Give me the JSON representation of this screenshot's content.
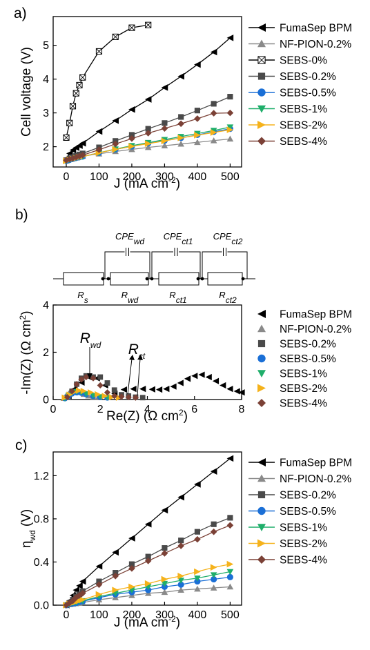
{
  "colors": {
    "FumaSep BPM": "#000000",
    "NF-PION-0.2%": "#8a8a8a",
    "SEBS-0%": "#000000",
    "SEBS-0.2%": "#4a4a4a",
    "SEBS-0.5%": "#1a6fd6",
    "SEBS-1%": "#1fae6a",
    "SEBS-2%": "#f5b21b",
    "SEBS-4%": "#7b4136"
  },
  "markers": {
    "FumaSep BPM": "triangle-left",
    "NF-PION-0.2%": "triangle-up",
    "SEBS-0%": "boxed-x",
    "SEBS-0.2%": "square",
    "SEBS-0.5%": "circle",
    "SEBS-1%": "triangle-down",
    "SEBS-2%": "triangle-right",
    "SEBS-4%": "diamond"
  },
  "circuit": {
    "resistors": [
      "R_s",
      "R_wd",
      "R_ct1",
      "R_ct2"
    ],
    "capacitors": [
      "CPE_wd",
      "CPE_ct1",
      "CPE_ct2"
    ]
  },
  "chart_data": [
    {
      "type": "line",
      "panel": "a)",
      "xlabel": "J (mA cm-2)",
      "ylabel": "Cell voltage (V)",
      "xlim": [
        -40,
        535
      ],
      "ylim": [
        1.4,
        5.85
      ],
      "xticks": [
        0,
        100,
        200,
        300,
        400,
        500
      ],
      "yticks": [
        2,
        3,
        4,
        5
      ],
      "legend": "right",
      "series": [
        {
          "name": "FumaSep BPM",
          "x": [
            0,
            10,
            20,
            30,
            40,
            50,
            100,
            150,
            200,
            250,
            300,
            350,
            400,
            450,
            500
          ],
          "y": [
            1.65,
            1.8,
            1.9,
            1.97,
            2.03,
            2.1,
            2.45,
            2.77,
            3.1,
            3.4,
            3.75,
            4.08,
            4.43,
            4.8,
            5.22
          ]
        },
        {
          "name": "NF-PION-0.2%",
          "x": [
            0,
            10,
            20,
            30,
            40,
            50,
            100,
            150,
            200,
            250,
            300,
            350,
            400,
            450,
            500
          ],
          "y": [
            1.58,
            1.62,
            1.65,
            1.67,
            1.7,
            1.72,
            1.79,
            1.86,
            1.92,
            1.98,
            2.03,
            2.08,
            2.13,
            2.18,
            2.23
          ]
        },
        {
          "name": "SEBS-0%",
          "x": [
            0,
            10,
            20,
            30,
            40,
            50,
            100,
            150,
            200,
            250
          ],
          "y": [
            2.27,
            2.7,
            3.2,
            3.58,
            3.82,
            4.05,
            4.82,
            5.25,
            5.52,
            5.6
          ]
        },
        {
          "name": "SEBS-0.2%",
          "x": [
            0,
            10,
            20,
            30,
            40,
            50,
            100,
            150,
            200,
            250,
            300,
            350,
            400,
            450,
            500
          ],
          "y": [
            1.6,
            1.65,
            1.69,
            1.73,
            1.77,
            1.8,
            1.98,
            2.17,
            2.35,
            2.53,
            2.7,
            2.88,
            3.07,
            3.27,
            3.48
          ]
        },
        {
          "name": "SEBS-0.5%",
          "x": [
            0,
            10,
            20,
            30,
            40,
            50,
            100,
            150,
            200,
            250,
            300,
            350,
            400,
            450,
            500
          ],
          "y": [
            1.58,
            1.61,
            1.64,
            1.67,
            1.69,
            1.71,
            1.82,
            1.92,
            2.01,
            2.1,
            2.18,
            2.26,
            2.35,
            2.44,
            2.53
          ]
        },
        {
          "name": "SEBS-1%",
          "x": [
            0,
            10,
            20,
            30,
            40,
            50,
            100,
            150,
            200,
            250,
            300,
            350,
            400,
            450,
            500
          ],
          "y": [
            1.58,
            1.61,
            1.64,
            1.67,
            1.69,
            1.71,
            1.82,
            1.93,
            2.03,
            2.12,
            2.21,
            2.3,
            2.39,
            2.48,
            2.58
          ]
        },
        {
          "name": "SEBS-2%",
          "x": [
            0,
            10,
            20,
            30,
            40,
            50,
            100,
            150,
            200,
            250,
            300,
            350,
            400,
            450,
            500
          ],
          "y": [
            1.58,
            1.61,
            1.64,
            1.66,
            1.69,
            1.71,
            1.82,
            1.92,
            2.01,
            2.09,
            2.17,
            2.26,
            2.34,
            2.42,
            2.5
          ]
        },
        {
          "name": "SEBS-4%",
          "x": [
            0,
            10,
            20,
            30,
            40,
            50,
            100,
            150,
            200,
            250,
            300,
            350,
            400,
            450,
            500
          ],
          "y": [
            1.6,
            1.63,
            1.66,
            1.69,
            1.72,
            1.75,
            1.91,
            2.08,
            2.24,
            2.4,
            2.54,
            2.68,
            2.83,
            2.99,
            3.0
          ]
        }
      ]
    },
    {
      "type": "scatter",
      "panel": "b)",
      "xlabel": "Re(Z) (Ω cm2)",
      "ylabel": "-Im(Z) (Ω cm2)",
      "xlim": [
        0,
        8
      ],
      "ylim": [
        0,
        4
      ],
      "xticks": [
        0,
        2,
        4,
        6,
        8
      ],
      "yticks": [
        0,
        2,
        4
      ],
      "legend": "right",
      "annotations": [
        "R_wd",
        "R_ct"
      ],
      "series": [
        {
          "name": "FumaSep BPM",
          "x": [
            0.65,
            0.9,
            1.2,
            1.5,
            1.85,
            2.2,
            2.6,
            3.0,
            3.4,
            3.8,
            4.2,
            4.5,
            4.8,
            5.1,
            5.4,
            5.7,
            6.0,
            6.3,
            6.6,
            6.9,
            7.2,
            7.5,
            7.8,
            8.0
          ],
          "y": [
            0.15,
            0.45,
            0.72,
            0.95,
            0.9,
            0.6,
            0.25,
            0.42,
            0.45,
            0.45,
            0.43,
            0.42,
            0.45,
            0.55,
            0.7,
            0.88,
            1.0,
            1.05,
            0.95,
            0.78,
            0.6,
            0.45,
            0.35,
            0.3
          ]
        },
        {
          "name": "NF-PION-0.2%",
          "x": [
            0.45,
            0.55,
            0.65,
            0.8,
            0.95,
            1.1,
            1.3,
            1.5,
            1.7,
            1.9
          ],
          "y": [
            0.05,
            0.15,
            0.25,
            0.32,
            0.33,
            0.3,
            0.22,
            0.15,
            0.1,
            0.08
          ]
        },
        {
          "name": "SEBS-0.2%",
          "x": [
            0.6,
            0.8,
            1.0,
            1.2,
            1.4,
            1.7,
            2.0,
            2.3,
            2.6,
            2.9,
            3.2,
            3.5,
            3.8
          ],
          "y": [
            0.1,
            0.35,
            0.65,
            0.9,
            1.0,
            0.95,
            0.95,
            0.7,
            0.4,
            0.2,
            0.15,
            0.1,
            0.08
          ]
        },
        {
          "name": "SEBS-0.5%",
          "x": [
            0.5,
            0.65,
            0.8,
            1.0,
            1.2,
            1.4,
            1.7,
            2.0,
            2.3
          ],
          "y": [
            0.05,
            0.15,
            0.25,
            0.3,
            0.28,
            0.22,
            0.15,
            0.1,
            0.08
          ]
        },
        {
          "name": "SEBS-1%",
          "x": [
            0.5,
            0.65,
            0.8,
            1.0,
            1.2,
            1.4,
            1.7,
            2.0,
            2.3
          ],
          "y": [
            0.05,
            0.18,
            0.28,
            0.33,
            0.3,
            0.24,
            0.17,
            0.12,
            0.09
          ]
        },
        {
          "name": "SEBS-2%",
          "x": [
            0.5,
            0.7,
            0.9,
            1.1,
            1.3,
            1.6,
            1.9,
            2.2,
            2.5,
            2.8
          ],
          "y": [
            0.08,
            0.2,
            0.32,
            0.38,
            0.36,
            0.3,
            0.22,
            0.15,
            0.1,
            0.08
          ]
        },
        {
          "name": "SEBS-4%",
          "x": [
            0.6,
            0.8,
            1.0,
            1.2,
            1.4,
            1.7,
            2.0,
            2.3,
            2.6,
            2.9,
            3.2,
            3.5
          ],
          "y": [
            0.1,
            0.35,
            0.65,
            0.85,
            0.95,
            0.9,
            0.6,
            0.3,
            0.15,
            0.12,
            0.1,
            0.08
          ]
        }
      ]
    },
    {
      "type": "line",
      "panel": "c)",
      "xlabel": "J (mA cm-2)",
      "ylabel": "ηwd (V)",
      "xlim": [
        -40,
        535
      ],
      "ylim": [
        0,
        1.42
      ],
      "xticks": [
        0,
        100,
        200,
        300,
        400,
        500
      ],
      "yticks": [
        0.0,
        0.4,
        0.8,
        1.2
      ],
      "legend": "right",
      "series": [
        {
          "name": "FumaSep BPM",
          "x": [
            0,
            10,
            20,
            30,
            40,
            50,
            100,
            150,
            200,
            250,
            300,
            350,
            400,
            450,
            500
          ],
          "y": [
            0,
            0.04,
            0.09,
            0.14,
            0.18,
            0.22,
            0.36,
            0.49,
            0.62,
            0.75,
            0.88,
            1.0,
            1.12,
            1.24,
            1.36
          ]
        },
        {
          "name": "NF-PION-0.2%",
          "x": [
            0,
            10,
            20,
            30,
            40,
            50,
            100,
            150,
            200,
            250,
            300,
            350,
            400,
            450,
            500
          ],
          "y": [
            0,
            0.005,
            0.01,
            0.015,
            0.02,
            0.025,
            0.05,
            0.07,
            0.09,
            0.11,
            0.12,
            0.14,
            0.15,
            0.16,
            0.17
          ]
        },
        {
          "name": "SEBS-0.2%",
          "x": [
            0,
            10,
            20,
            30,
            40,
            50,
            100,
            150,
            200,
            250,
            300,
            350,
            400,
            450,
            500
          ],
          "y": [
            0,
            0.02,
            0.05,
            0.08,
            0.1,
            0.13,
            0.22,
            0.3,
            0.38,
            0.45,
            0.53,
            0.6,
            0.68,
            0.75,
            0.81
          ]
        },
        {
          "name": "SEBS-0.5%",
          "x": [
            0,
            10,
            20,
            30,
            40,
            50,
            100,
            150,
            200,
            250,
            300,
            350,
            400,
            450,
            500
          ],
          "y": [
            0,
            0.01,
            0.015,
            0.02,
            0.03,
            0.035,
            0.07,
            0.1,
            0.12,
            0.14,
            0.17,
            0.19,
            0.22,
            0.24,
            0.26
          ]
        },
        {
          "name": "SEBS-1%",
          "x": [
            0,
            10,
            20,
            30,
            40,
            50,
            100,
            150,
            200,
            250,
            300,
            350,
            400,
            450,
            500
          ],
          "y": [
            0,
            0.01,
            0.02,
            0.025,
            0.035,
            0.04,
            0.08,
            0.11,
            0.14,
            0.17,
            0.2,
            0.23,
            0.25,
            0.28,
            0.31
          ]
        },
        {
          "name": "SEBS-2%",
          "x": [
            0,
            10,
            20,
            30,
            40,
            50,
            100,
            150,
            200,
            250,
            300,
            350,
            400,
            450,
            500
          ],
          "y": [
            0,
            0.01,
            0.02,
            0.03,
            0.04,
            0.05,
            0.1,
            0.14,
            0.17,
            0.2,
            0.24,
            0.27,
            0.31,
            0.35,
            0.38
          ]
        },
        {
          "name": "SEBS-4%",
          "x": [
            0,
            10,
            20,
            30,
            40,
            50,
            100,
            150,
            200,
            250,
            300,
            350,
            400,
            450,
            500
          ],
          "y": [
            0,
            0.02,
            0.04,
            0.07,
            0.09,
            0.11,
            0.19,
            0.27,
            0.34,
            0.41,
            0.48,
            0.55,
            0.61,
            0.68,
            0.74
          ]
        }
      ]
    }
  ]
}
